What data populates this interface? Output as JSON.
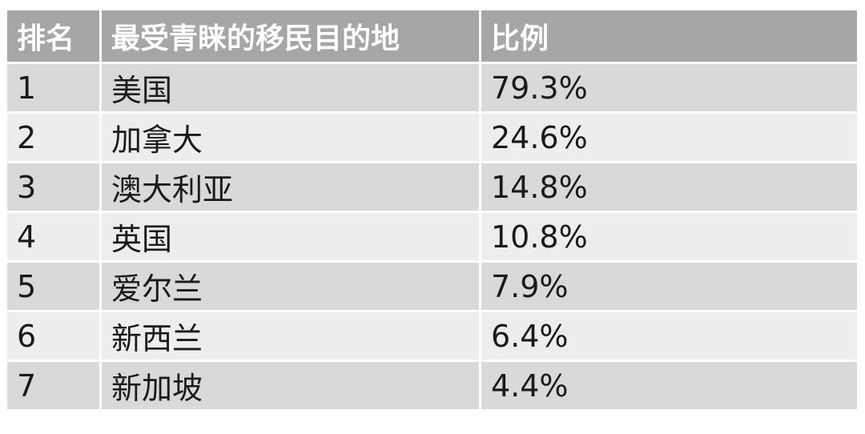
{
  "chart_data": {
    "type": "table",
    "columns": [
      "排名",
      "最受青睐的移民目的地",
      "比例"
    ],
    "rows": [
      {
        "rank": "1",
        "destination": "美国",
        "ratio": "79.3%"
      },
      {
        "rank": "2",
        "destination": "加拿大",
        "ratio": "24.6%"
      },
      {
        "rank": "3",
        "destination": "澳大利亚",
        "ratio": "14.8%"
      },
      {
        "rank": "4",
        "destination": "英国",
        "ratio": "10.8%"
      },
      {
        "rank": "5",
        "destination": "爱尔兰",
        "ratio": "7.9%"
      },
      {
        "rank": "6",
        "destination": "新西兰",
        "ratio": "6.4%"
      },
      {
        "rank": "7",
        "destination": "新加坡",
        "ratio": "4.4%"
      }
    ]
  },
  "colors": {
    "header_bg": "#a6a6a6",
    "header_text": "#ffffff",
    "row_odd_bg": "#d9d9d9",
    "row_even_bg": "#ededed",
    "text": "#1a1a1a"
  }
}
